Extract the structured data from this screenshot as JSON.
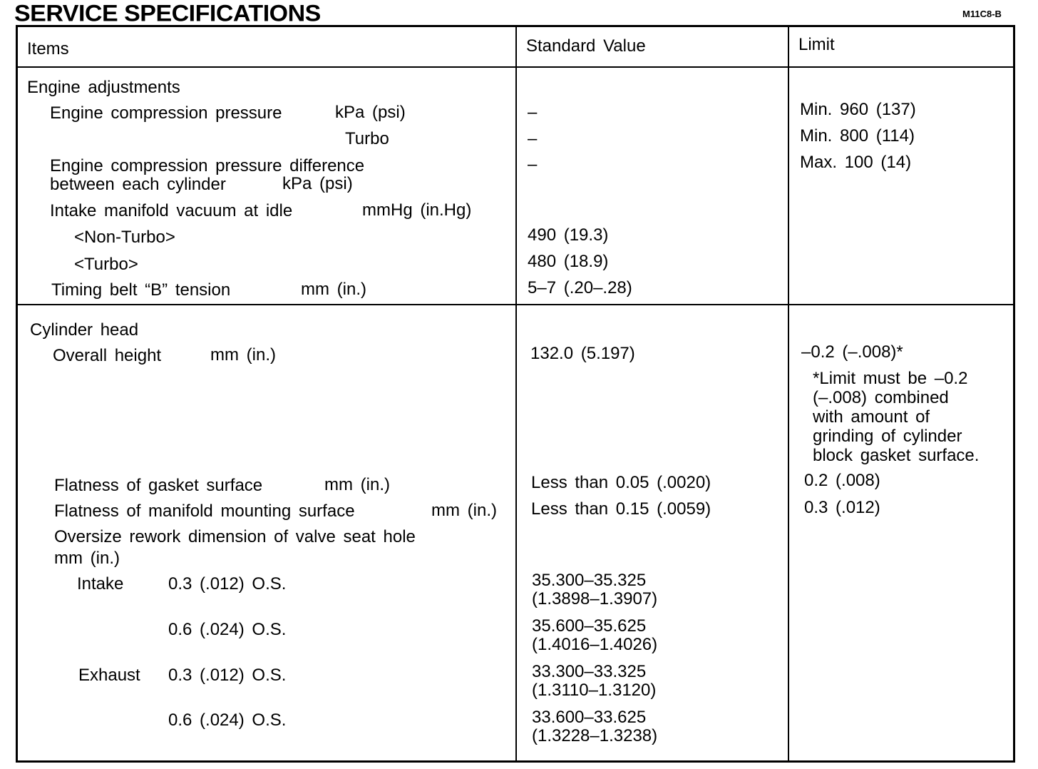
{
  "title": "SERVICE SPECIFICATIONS",
  "doc_code": "M11C8-B",
  "header": {
    "items": "Items",
    "standard": "Standard Value",
    "limit": "Limit"
  },
  "engine": {
    "heading": "Engine adjustments",
    "comp_label": "Engine compression pressure",
    "comp_unit": "kPa (psi)",
    "comp_std": "–",
    "comp_limit": "Min. 960 (137)",
    "turbo_label": "Turbo",
    "turbo_std": "–",
    "turbo_limit": "Min. 800 (114)",
    "diff_label1": "Engine compression pressure difference",
    "diff_label2": "between each cylinder",
    "diff_unit": "kPa (psi)",
    "diff_std": "–",
    "diff_limit": "Max. 100 (14)",
    "vac_label": "Intake manifold vacuum at idle",
    "vac_unit": "mmHg (in.Hg)",
    "nonturbo_label": "<Non-Turbo>",
    "nonturbo_std": "490 (19.3)",
    "vturbo_label": "<Turbo>",
    "vturbo_std": "480 (18.9)",
    "belt_label": "Timing belt “B” tension",
    "belt_unit": "mm (in.)",
    "belt_std": "5–7 (.20–.28)"
  },
  "cylinder": {
    "heading": "Cylinder head",
    "height_label": "Overall height",
    "height_unit": "mm (in.)",
    "height_std": "132.0 (5.197)",
    "height_limit": "–0.2 (–.008)*",
    "note": [
      "*Limit must be –0.2",
      "(–.008) combined",
      "with amount of",
      "grinding of cylinder",
      "block gasket surface."
    ],
    "gasket_label": "Flatness of gasket surface",
    "gasket_unit": "mm (in.)",
    "gasket_std": "Less than 0.05 (.0020)",
    "gasket_limit": "0.2 (.008)",
    "manifold_label": "Flatness of manifold mounting surface",
    "manifold_unit": "mm (in.)",
    "manifold_std": "Less than 0.15 (.0059)",
    "manifold_limit": "0.3 (.012)",
    "oversize_label": "Oversize rework dimension of valve seat hole",
    "oversize_unit": "mm (in.)",
    "intake_label": "Intake",
    "exhaust_label": "Exhaust",
    "rows": [
      {
        "size": "0.3 (.012) O.S.",
        "mm": "35.300–35.325",
        "in": "(1.3898–1.3907)"
      },
      {
        "size": "0.6 (.024) O.S.",
        "mm": "35.600–35.625",
        "in": "(1.4016–1.4026)"
      },
      {
        "size": "0.3 (.012) O.S.",
        "mm": "33.300–33.325",
        "in": "(1.3110–1.3120)"
      },
      {
        "size": "0.6 (.024) O.S.",
        "mm": "33.600–33.625",
        "in": "(1.3228–1.3238)"
      }
    ]
  }
}
